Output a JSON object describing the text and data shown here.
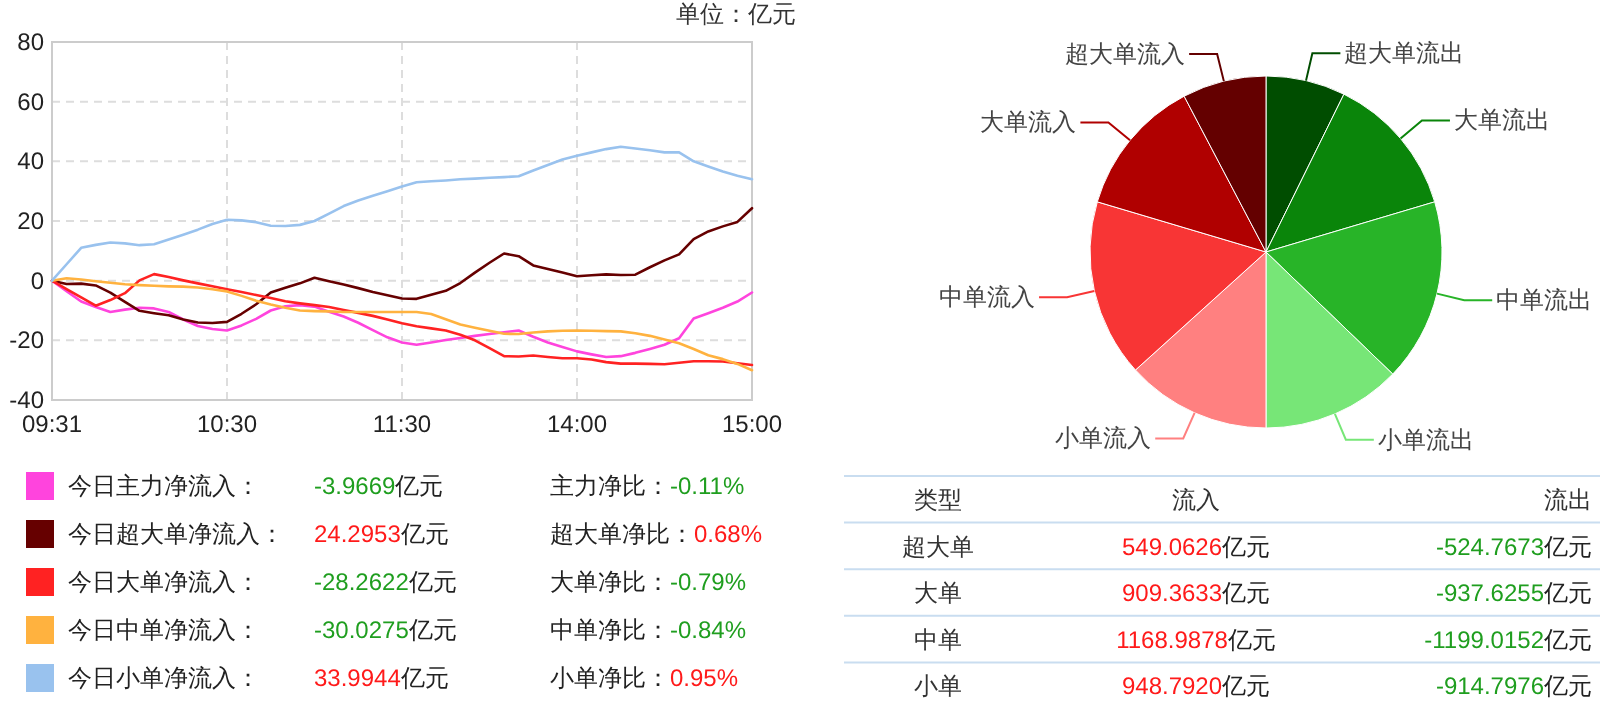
{
  "chart_data": [
    {
      "type": "line",
      "title": "单位：亿元",
      "categories": [
        "09:31",
        null,
        null,
        null,
        null,
        null,
        null,
        null,
        null,
        null,
        null,
        null,
        "10:30",
        null,
        null,
        null,
        null,
        null,
        null,
        null,
        null,
        null,
        null,
        null,
        "11:30",
        null,
        null,
        null,
        null,
        null,
        null,
        null,
        null,
        null,
        null,
        null,
        "14:00",
        null,
        null,
        null,
        null,
        null,
        null,
        null,
        null,
        null,
        null,
        null,
        "15:00"
      ],
      "ylim": [
        -40,
        80
      ],
      "yticks": [
        -40,
        -20,
        0,
        20,
        40,
        60,
        80
      ],
      "grid": true,
      "legend": "bottom",
      "series": [
        {
          "name": "今日主力净流入：",
          "color": "#ff44dd",
          "values": [
            0,
            -3.5,
            -7,
            -8.8,
            -10.5,
            -9.7,
            -9.1,
            -9.3,
            -10.5,
            -13,
            -15.2,
            -16.2,
            -16.7,
            -15,
            -12.8,
            -10,
            -8.6,
            -8.2,
            -8.7,
            -10.4,
            -12,
            -14.1,
            -16.6,
            -19,
            -20.7,
            -21.5,
            -20.7,
            -19.9,
            -19.2,
            -18.5,
            -17.9,
            -17.3,
            -16.7,
            -18.8,
            -20.7,
            -22.2,
            -23.7,
            -24.7,
            -25.6,
            -25.3,
            -24.2,
            -22.9,
            -21.5,
            -19.3,
            -12.7,
            -10.9,
            -9.1,
            -7,
            -3.9669
          ]
        },
        {
          "name": "今日超大单净流入：",
          "color": "#660000",
          "values": [
            0,
            -1.1,
            -1,
            -1.6,
            -4,
            -7.1,
            -10.1,
            -10.9,
            -11.6,
            -13,
            -14,
            -14.2,
            -13.8,
            -11.1,
            -7.9,
            -4,
            -2.4,
            -0.9,
            1,
            -0.2,
            -1.3,
            -2.5,
            -3.8,
            -4.9,
            -6,
            -6.1,
            -4.7,
            -3.4,
            -0.8,
            2.7,
            6,
            9.1,
            8.2,
            5.1,
            3.9,
            2.7,
            1.5,
            1.8,
            2.1,
            1.9,
            2,
            4.5,
            6.8,
            8.8,
            13.9,
            16.5,
            18.2,
            19.7,
            24.2953
          ]
        },
        {
          "name": "今日大单净流入：",
          "color": "#ff2222",
          "values": [
            0,
            -2.8,
            -5.6,
            -8.4,
            -6.5,
            -4.2,
            0.1,
            2.2,
            1.2,
            0.1,
            -0.9,
            -1.9,
            -2.9,
            -3.8,
            -4.8,
            -5.8,
            -6.9,
            -7.6,
            -8.2,
            -8.8,
            -9.8,
            -10.8,
            -11.8,
            -13,
            -14.3,
            -15.3,
            -16,
            -16.7,
            -18.1,
            -20,
            -22.6,
            -25.3,
            -25.4,
            -25.1,
            -25.6,
            -26,
            -26,
            -26.4,
            -27.3,
            -27.8,
            -27.8,
            -27.9,
            -28,
            -27.5,
            -27,
            -27,
            -27.1,
            -27.7,
            -28.2622
          ]
        },
        {
          "name": "今日中单净流入：",
          "color": "#ffb23f",
          "values": [
            0,
            0.8,
            0.4,
            -0.2,
            -0.7,
            -1.2,
            -1.5,
            -1.7,
            -1.9,
            -2,
            -2.3,
            -2.9,
            -3.6,
            -5.1,
            -6.7,
            -8,
            -9.1,
            -10,
            -10.2,
            -10.3,
            -10.5,
            -10.5,
            -10.5,
            -10.5,
            -10.5,
            -10.5,
            -11.2,
            -12.9,
            -14.7,
            -15.8,
            -16.8,
            -17.8,
            -17.9,
            -17.4,
            -17,
            -16.8,
            -16.7,
            -16.8,
            -16.9,
            -17,
            -17.6,
            -18.5,
            -19.7,
            -21,
            -22.9,
            -25,
            -26.3,
            -27.9,
            -30.0275
          ]
        },
        {
          "name": "今日小单净流入：",
          "color": "#99c2ee",
          "values": [
            0,
            5.5,
            11,
            12,
            12.8,
            12.5,
            11.9,
            12.2,
            13.8,
            15.4,
            17.1,
            19,
            20.4,
            20.2,
            19.6,
            18.4,
            18.3,
            18.7,
            20,
            22.5,
            25,
            26.9,
            28.5,
            30,
            31.6,
            33,
            33.3,
            33.6,
            34,
            34.2,
            34.5,
            34.7,
            35,
            36.9,
            38.8,
            40.6,
            41.9,
            43,
            44.1,
            44.9,
            44.3,
            43.7,
            43,
            43,
            40,
            38.3,
            36.6,
            35.2,
            33.9944
          ]
        }
      ],
      "annotations": [
        "-3.9669亿元",
        "主力净比：",
        "-0.11%",
        "24.2953亿元",
        "超大单净比：",
        "0.68%",
        "-28.2622亿元",
        "大单净比：",
        "-0.79%",
        "-30.0275亿元",
        "中单净比：",
        "-0.84%",
        "33.9944亿元",
        "小单净比：",
        "0.95%"
      ]
    },
    {
      "type": "pie",
      "categories": [
        "超大单流出",
        "大单流出",
        "中单流出",
        "小单流出",
        "小单流入",
        "中单流入",
        "大单流入",
        "超大单流入"
      ],
      "values": [
        7.3,
        13.1,
        16.8,
        12.8,
        13.3,
        16.3,
        12.7,
        7.7
      ],
      "colors": [
        "#004d00",
        "#0a850a",
        "#28b428",
        "#77e677",
        "#ff8080",
        "#f83535",
        "#b00000",
        "#640000"
      ]
    },
    {
      "type": "other",
      "annotations": [
        "类型",
        "流入",
        "流出",
        "超大单",
        "549.0626亿元",
        "-524.7673亿元",
        "大单",
        "909.3633亿元",
        "-937.6255亿元",
        "中单",
        "1168.9878亿元",
        "-1199.0152亿元",
        "小单",
        "948.7920亿元",
        "-914.7976亿元"
      ]
    }
  ]
}
